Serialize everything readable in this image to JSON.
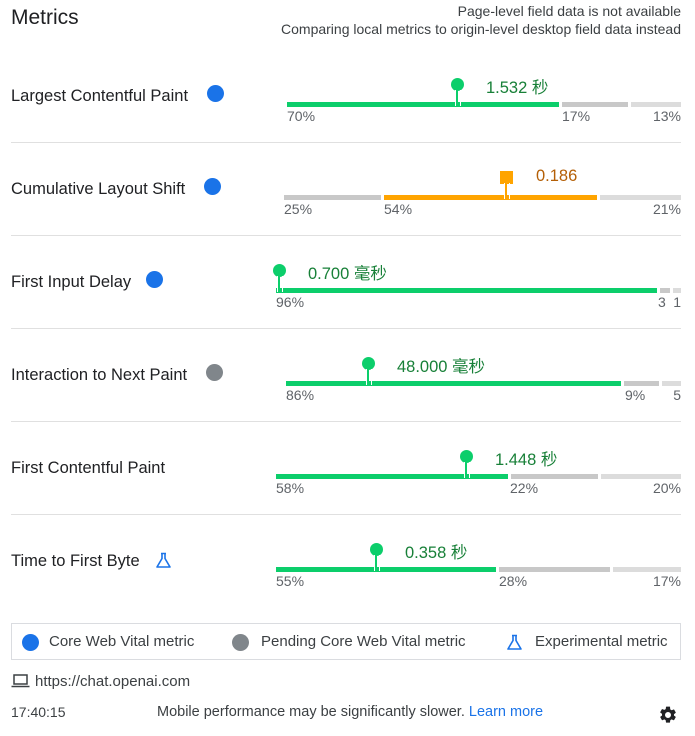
{
  "header": {
    "title": "Metrics",
    "notice_line1": "Page-level field data is not available",
    "notice_line2": "Comparing local metrics to origin-level desktop field data instead"
  },
  "metrics": [
    {
      "name": "Largest Contentful Paint",
      "badge": "core-web-vital",
      "value": "1.532 秒",
      "rating": "good",
      "distribution": [
        {
          "label": "70%",
          "share": 0.7
        },
        {
          "label": "17%",
          "share": 0.17
        },
        {
          "label": "13%",
          "share": 0.13
        }
      ]
    },
    {
      "name": "Cumulative Layout Shift",
      "badge": "core-web-vital",
      "value": "0.186",
      "rating": "needs-improvement",
      "distribution": [
        {
          "label": "25%",
          "share": 0.25
        },
        {
          "label": "54%",
          "share": 0.54
        },
        {
          "label": "21%",
          "share": 0.21
        }
      ]
    },
    {
      "name": "First Input Delay",
      "badge": "core-web-vital",
      "value": "0.700 毫秒",
      "rating": "good",
      "distribution": [
        {
          "label": "96%",
          "share": 0.96
        },
        {
          "label": "3",
          "share": 0.03
        },
        {
          "label": "1",
          "share": 0.01
        }
      ]
    },
    {
      "name": "Interaction to Next Paint",
      "badge": "pending-core-web-vital",
      "value": "48.000 毫秒",
      "rating": "good",
      "distribution": [
        {
          "label": "86%",
          "share": 0.86
        },
        {
          "label": "9%",
          "share": 0.09
        },
        {
          "label": "5",
          "share": 0.05
        }
      ]
    },
    {
      "name": "First Contentful Paint",
      "badge": "none",
      "value": "1.448 秒",
      "rating": "good",
      "distribution": [
        {
          "label": "58%",
          "share": 0.58
        },
        {
          "label": "22%",
          "share": 0.22
        },
        {
          "label": "20%",
          "share": 0.2
        }
      ]
    },
    {
      "name": "Time to First Byte",
      "badge": "experimental",
      "value": "0.358 秒",
      "rating": "good",
      "distribution": [
        {
          "label": "55%",
          "share": 0.55
        },
        {
          "label": "28%",
          "share": 0.28
        },
        {
          "label": "17%",
          "share": 0.17
        }
      ]
    }
  ],
  "legend": {
    "core": "Core Web Vital metric",
    "pending": "Pending Core Web Vital metric",
    "experimental": "Experimental metric"
  },
  "footer": {
    "url": "https://chat.openai.com",
    "time": "17:40:15",
    "message": "Mobile performance may be significantly slower.",
    "learn_more": "Learn more"
  },
  "colors": {
    "good": "#0cce6b",
    "needs_improvement": "#ffa400",
    "core_badge": "#1a73e8",
    "pending_badge": "#80868b",
    "link": "#1a73e8"
  },
  "icons": {
    "laptop": "laptop-icon",
    "flask": "flask-icon",
    "settings": "gear-icon"
  }
}
